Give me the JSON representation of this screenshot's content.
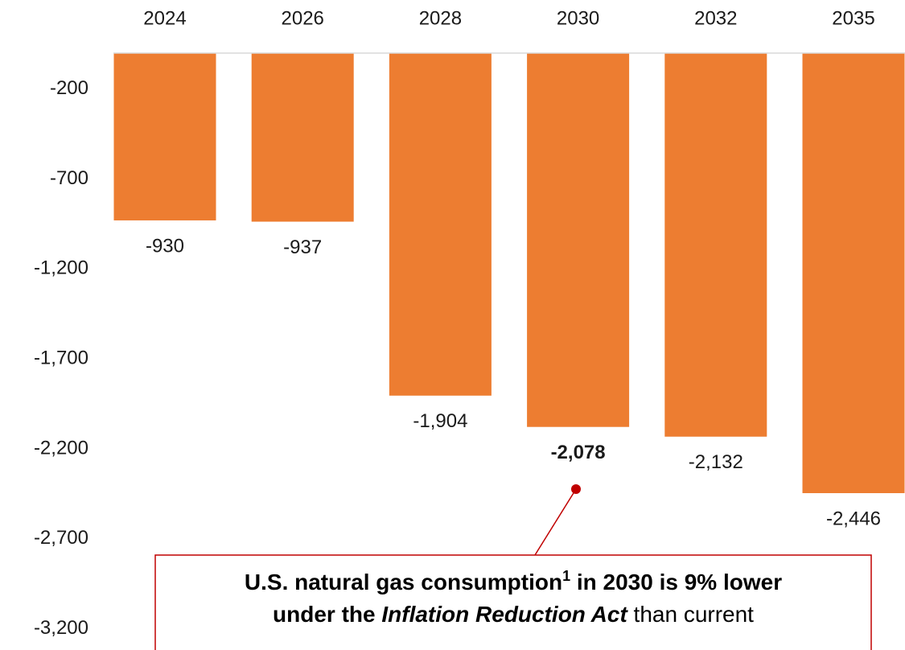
{
  "chart_data": {
    "type": "bar",
    "categories": [
      "2024",
      "2026",
      "2028",
      "2030",
      "2032",
      "2035"
    ],
    "values": [
      -930,
      -937,
      -1904,
      -2078,
      -2132,
      -2446
    ],
    "value_labels": [
      "-930",
      "-937",
      "-1,904",
      "-2,078",
      "-2,132",
      "-2,446"
    ],
    "color": "#ed7d31",
    "highlight": "2030",
    "ylim": [
      -3300,
      0
    ],
    "yticks": [
      -200,
      -700,
      {
        "value": -1200,
        "label": "-1,200"
      },
      {
        "value": -1700,
        "label": "-1,700"
      },
      {
        "value": -2200,
        "label": "-2,200"
      },
      {
        "value": -2700,
        "label": "-2,700"
      },
      {
        "value": -3200,
        "label": "-3,200"
      }
    ],
    "annotation": {
      "lines": [
        [
          "U.S. natural gas consumption",
          "1",
          " in 2030 is 9% lower"
        ],
        [
          "under the ",
          "Inflation Reduction Act",
          " than current"
        ]
      ],
      "color": "#c00000"
    }
  }
}
